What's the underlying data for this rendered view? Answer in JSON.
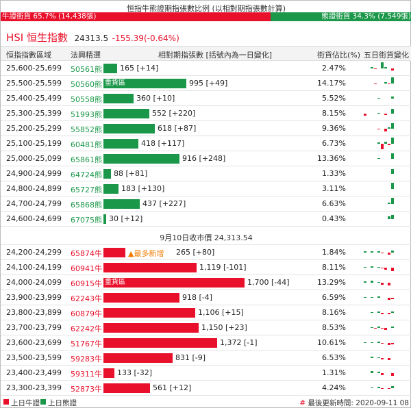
{
  "ratio": {
    "title": "恒指牛熊證期指張數比例 (以相對期指張數計算)",
    "bull_label": "牛證街貨 65.7% (14,438張)",
    "bear_label": "熊證街貨 34.3% (7,549張)",
    "bull_share": 0.657,
    "bull_color": "#e8102a",
    "bear_color": "#1a9748"
  },
  "index": {
    "name": "HSI 恒生指數",
    "price": "24313.5",
    "change": "-155.39(-0.64%)"
  },
  "headers": {
    "range": "恒指指數區域",
    "code": "法興精選",
    "contracts": "相對期指張數 [括號內為一日變化]",
    "share": "街貨佔比(%)",
    "five_day": "五日街貨變化"
  },
  "hot_label": "重貨區",
  "new_label": "▲最多新增",
  "mid_label": "9月10日收市價 24,313.54",
  "max_contracts": 1700,
  "bear_rows": [
    {
      "range": "25,600-25,699",
      "code": "50561熊",
      "contracts": 165,
      "text": "165 [+14]",
      "share": "2.47%",
      "hot": false,
      "mini": [
        0,
        0,
        2,
        -1,
        0,
        10,
        2,
        0,
        -3,
        0
      ]
    },
    {
      "range": "25,500-25,599",
      "code": "50560熊",
      "contracts": 995,
      "text": "995 [+49]",
      "share": "14.17%",
      "hot": true,
      "mini": [
        0,
        0,
        0,
        -1,
        0,
        0,
        2,
        -1,
        10,
        0
      ]
    },
    {
      "range": "25,400-25,499",
      "code": "50558熊",
      "contracts": 360,
      "text": "360 [+10]",
      "share": "5.52%",
      "hot": false,
      "mini": [
        0,
        0,
        0,
        0,
        1,
        0,
        0,
        0,
        3,
        0
      ]
    },
    {
      "range": "25,300-25,399",
      "code": "51993熊",
      "contracts": 552,
      "text": "552 [+220]",
      "share": "8.15%",
      "hot": false,
      "mini": [
        -3,
        0,
        0,
        0,
        1,
        0,
        -2,
        0,
        7,
        0
      ]
    },
    {
      "range": "25,200-25,299",
      "code": "55852熊",
      "contracts": 618,
      "text": "618 [+87]",
      "share": "9.36%",
      "hot": false,
      "mini": [
        0,
        0,
        0,
        0,
        -1,
        0,
        -4,
        2,
        8,
        0
      ]
    },
    {
      "range": "25,100-25,199",
      "code": "60481熊",
      "contracts": 418,
      "text": "418 [+117]",
      "share": "6.73%",
      "hot": false,
      "mini": [
        0,
        0,
        0,
        0,
        2,
        -8,
        3,
        -2,
        9,
        0
      ]
    },
    {
      "range": "25,000-25,099",
      "code": "65861熊",
      "contracts": 916,
      "text": "916 [+248]",
      "share": "13.36%",
      "hot": false,
      "mini": [
        0,
        0,
        0,
        0,
        1,
        0,
        0,
        0,
        8,
        0
      ]
    },
    {
      "range": "24,900-24,999",
      "code": "64724熊",
      "contracts": 88,
      "text": "88 [+81]",
      "share": "1.33%",
      "hot": false,
      "mini": [
        0,
        0,
        0,
        0,
        0,
        0,
        0,
        0,
        7,
        0
      ]
    },
    {
      "range": "24,800-24,899",
      "code": "65727熊",
      "contracts": 183,
      "text": "183 [+130]",
      "share": "3.11%",
      "hot": false,
      "mini": [
        0,
        0,
        0,
        0,
        0,
        0,
        0,
        0,
        9,
        0
      ]
    },
    {
      "range": "24,700-24,799",
      "code": "65868熊",
      "contracts": 437,
      "text": "437 [+227]",
      "share": "6.63%",
      "hot": false,
      "mini": [
        0,
        0,
        0,
        0,
        0,
        0,
        0,
        2,
        9,
        0
      ]
    },
    {
      "range": "24,600-24,699",
      "code": "67075熊",
      "contracts": 30,
      "text": "30 [+12]",
      "share": "0.43%",
      "hot": false,
      "mini": [
        0,
        0,
        0,
        0,
        0,
        0,
        0,
        4,
        6,
        0
      ]
    }
  ],
  "bull_rows": [
    {
      "range": "24,200-24,299",
      "code": "65874牛",
      "contracts": 265,
      "text": "265 [+80]",
      "share": "1.84%",
      "hot": false,
      "new": true,
      "mini": [
        2,
        0,
        2,
        0,
        2,
        -1,
        0,
        -3,
        3,
        0
      ]
    },
    {
      "range": "24,100-24,199",
      "code": "60941牛",
      "contracts": 1119,
      "text": "1,119 [-101]",
      "share": "8.11%",
      "hot": false,
      "new": false,
      "mini": [
        1,
        0,
        2,
        0,
        1,
        -1,
        -3,
        0,
        -5,
        0
      ]
    },
    {
      "range": "24,000-24,099",
      "code": "60915牛",
      "contracts": 1700,
      "text": "1,700 [-44]",
      "share": "13.29%",
      "hot": true,
      "new": false,
      "mini": [
        2,
        0,
        3,
        0,
        1,
        -3,
        0,
        -4,
        0,
        0
      ]
    },
    {
      "range": "23,900-23,999",
      "code": "62243牛",
      "contracts": 918,
      "text": "918 [-4]",
      "share": "6.59%",
      "hot": false,
      "new": false,
      "mini": [
        1,
        0,
        1,
        0,
        2,
        0,
        0,
        -3,
        -2,
        0
      ]
    },
    {
      "range": "23,800-23,899",
      "code": "60879牛",
      "contracts": 1106,
      "text": "1,106 [+15]",
      "share": "8.16%",
      "hot": false,
      "new": false,
      "mini": [
        0,
        0,
        1,
        0,
        2,
        -2,
        0,
        -2,
        2,
        0
      ]
    },
    {
      "range": "23,700-23,799",
      "code": "62242牛",
      "contracts": 1150,
      "text": "1,150 [+23]",
      "share": "8.53%",
      "hot": false,
      "new": false,
      "mini": [
        0,
        0,
        1,
        -1,
        2,
        -1,
        -3,
        0,
        2,
        0
      ]
    },
    {
      "range": "23,600-23,699",
      "code": "51767牛",
      "contracts": 1372,
      "text": "1,372 [-1]",
      "share": "10.61%",
      "hot": false,
      "new": false,
      "mini": [
        1,
        0,
        1,
        0,
        2,
        -1,
        0,
        -3,
        -2,
        0
      ]
    },
    {
      "range": "23,500-23,599",
      "code": "59283牛",
      "contracts": 831,
      "text": "831 [-9]",
      "share": "6.53%",
      "hot": false,
      "new": false,
      "mini": [
        0,
        0,
        2,
        0,
        1,
        -2,
        0,
        -3,
        0,
        0
      ]
    },
    {
      "range": "23,400-23,499",
      "code": "59311牛",
      "contracts": 133,
      "text": "133 [-32]",
      "share": "1.31%",
      "hot": false,
      "new": false,
      "mini": [
        0,
        0,
        3,
        0,
        2,
        -3,
        0,
        0,
        -4,
        0
      ]
    },
    {
      "range": "23,300-23,399",
      "code": "52873牛",
      "contracts": 561,
      "text": "561 [+12]",
      "share": "4.24%",
      "hot": false,
      "new": false,
      "mini": [
        0,
        0,
        1,
        0,
        2,
        -1,
        0,
        -1,
        3,
        0
      ]
    }
  ],
  "footer": {
    "bull_legend": "上日牛證",
    "bear_legend": "上日熊證",
    "hash": "#",
    "updated": "最後更新時間: 2020-09-11 08"
  }
}
